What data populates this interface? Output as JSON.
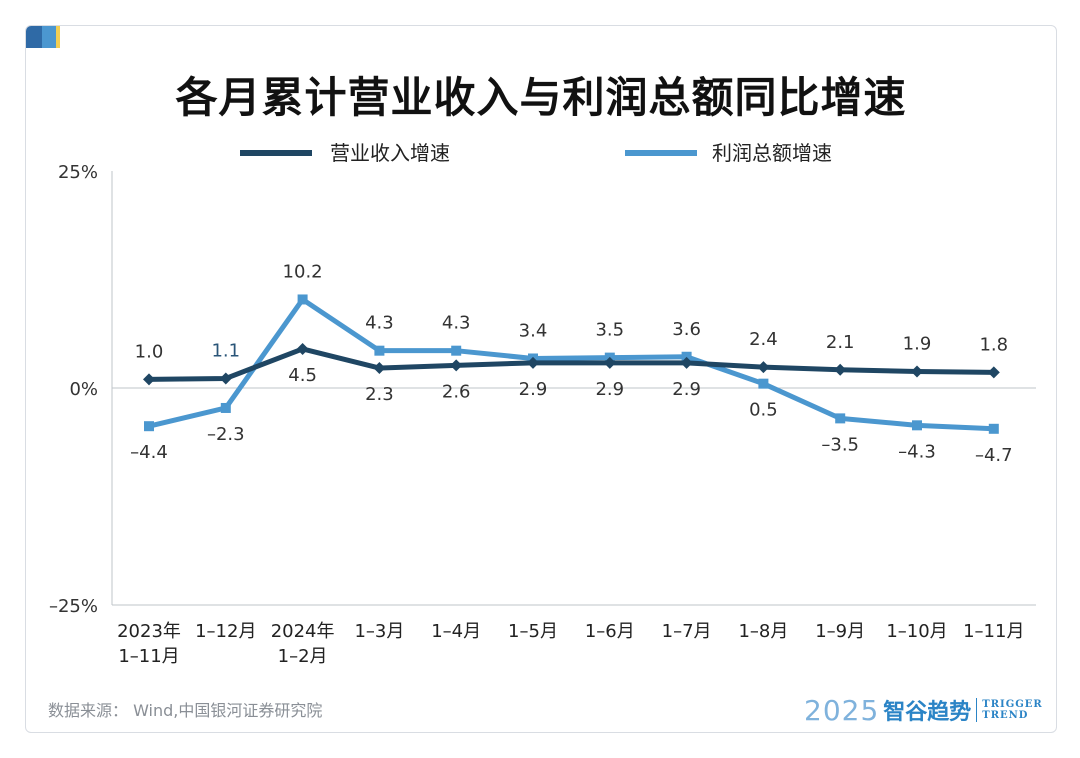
{
  "title": "各月累计营业收入与利润总额同比增速",
  "source": "数据来源： Wind,中国银河证券研究院",
  "brand": {
    "year": "2025",
    "name": "智谷趋势",
    "en_line1": "TRIGGER",
    "en_line2": "TREND"
  },
  "colors": {
    "revenue": "#1f4663",
    "profit": "#4b97cf",
    "axis": "#bfc4ca",
    "text": "#333333"
  },
  "chart_data": {
    "type": "line",
    "title": "各月累计营业收入与利润总额同比增速",
    "categories": [
      [
        "2023年",
        "1–11月"
      ],
      [
        "1–12月"
      ],
      [
        "2024年",
        "1–2月"
      ],
      [
        "1–3月"
      ],
      [
        "1–4月"
      ],
      [
        "1–5月"
      ],
      [
        "1–6月"
      ],
      [
        "1–7月"
      ],
      [
        "1–8月"
      ],
      [
        "1–9月"
      ],
      [
        "1–10月"
      ],
      [
        "1–11月"
      ]
    ],
    "y_ticks": [
      {
        "value": 25,
        "label": "25%"
      },
      {
        "value": 0,
        "label": "0%"
      },
      {
        "value": -25,
        "label": "–25%"
      }
    ],
    "ylim": [
      -25,
      25
    ],
    "legend_position": "top",
    "series": [
      {
        "name": "营业收入增速",
        "marker": "diamond",
        "values": [
          1.0,
          1.1,
          4.5,
          2.3,
          2.6,
          2.9,
          2.9,
          2.9,
          2.4,
          2.1,
          1.9,
          1.8
        ],
        "labels": [
          "1.0",
          "1.1",
          "4.5",
          "2.3",
          "2.6",
          "2.9",
          "2.9",
          "2.9",
          "2.4",
          "2.1",
          "1.9",
          "1.8"
        ],
        "label_pos": [
          "above",
          "above",
          "below",
          "below",
          "below",
          "below",
          "below",
          "below",
          "above",
          "above",
          "above",
          "above"
        ]
      },
      {
        "name": "利润总额增速",
        "marker": "square",
        "values": [
          -4.4,
          -2.3,
          10.2,
          4.3,
          4.3,
          3.4,
          3.5,
          3.6,
          0.5,
          -3.5,
          -4.3,
          -4.7
        ],
        "labels": [
          "–4.4",
          "–2.3",
          "10.2",
          "4.3",
          "4.3",
          "3.4",
          "3.5",
          "3.6",
          "0.5",
          "–3.5",
          "–4.3",
          "–4.7"
        ],
        "label_pos": [
          "below",
          "below",
          "above",
          "above",
          "above",
          "above",
          "above",
          "above",
          "below",
          "below",
          "below",
          "below"
        ]
      }
    ]
  }
}
